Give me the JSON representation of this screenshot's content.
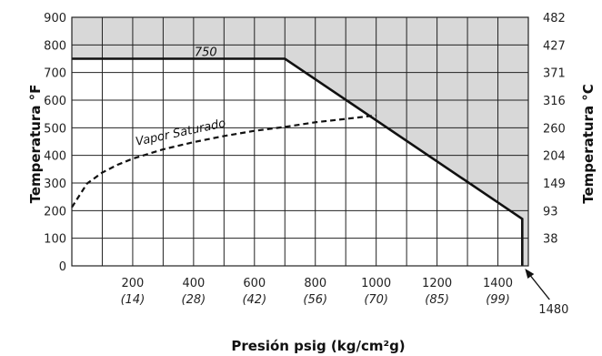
{
  "chart_data": {
    "type": "line",
    "xlabel": "Presión psig (kg/cm²g)",
    "ylabel_left": "Temperatura °F",
    "ylabel_right": "Temperatura °C",
    "xlim": [
      0,
      1500
    ],
    "ylim": [
      0,
      900
    ],
    "grid": true,
    "x_ticks": [
      {
        "value": 200,
        "label": "200",
        "sub": "(14)"
      },
      {
        "value": 400,
        "label": "400",
        "sub": "(28)"
      },
      {
        "value": 600,
        "label": "600",
        "sub": "(42)"
      },
      {
        "value": 800,
        "label": "800",
        "sub": "(56)"
      },
      {
        "value": 1000,
        "label": "1000",
        "sub": "(70)"
      },
      {
        "value": 1200,
        "label": "1200",
        "sub": "(85)"
      },
      {
        "value": 1400,
        "label": "1400",
        "sub": "(99)"
      }
    ],
    "y_ticks_left": [
      {
        "value": 0,
        "label": "0"
      },
      {
        "value": 100,
        "label": "100"
      },
      {
        "value": 200,
        "label": "200"
      },
      {
        "value": 300,
        "label": "300"
      },
      {
        "value": 400,
        "label": "400"
      },
      {
        "value": 500,
        "label": "500"
      },
      {
        "value": 600,
        "label": "600"
      },
      {
        "value": 700,
        "label": "700"
      },
      {
        "value": 800,
        "label": "800"
      },
      {
        "value": 900,
        "label": "900"
      }
    ],
    "y_ticks_right": [
      {
        "value": 100,
        "label": "38"
      },
      {
        "value": 200,
        "label": "93"
      },
      {
        "value": 300,
        "label": "149"
      },
      {
        "value": 400,
        "label": "204"
      },
      {
        "value": 500,
        "label": "260"
      },
      {
        "value": 600,
        "label": "316"
      },
      {
        "value": 700,
        "label": "371"
      },
      {
        "value": 800,
        "label": "427"
      },
      {
        "value": 900,
        "label": "482"
      }
    ],
    "series": [
      {
        "kind": "limit",
        "style": "solid",
        "x": [
          0,
          700,
          1480,
          1480
        ],
        "y": [
          750,
          750,
          170,
          0
        ]
      },
      {
        "name": "Vapor Saturado",
        "kind": "saturation",
        "style": "dashed",
        "x": [
          0,
          50,
          100,
          150,
          200,
          300,
          400,
          500,
          600,
          700,
          800,
          900,
          1000
        ],
        "y": [
          212,
          298,
          338,
          366,
          388,
          422,
          448,
          470,
          489,
          503,
          520,
          532,
          545
        ]
      }
    ],
    "shaded_region": "above limit line",
    "annotations": [
      {
        "text": "750",
        "x": 440,
        "y": 760
      },
      {
        "text": "Vapor Saturado",
        "x": 360,
        "y": 470,
        "angle_deg": -12
      },
      {
        "text": "1480",
        "x": 1480,
        "y": 0
      }
    ],
    "colors": {
      "line": "#111111",
      "shade": "#d8d8d8",
      "grid": "#222222"
    }
  }
}
